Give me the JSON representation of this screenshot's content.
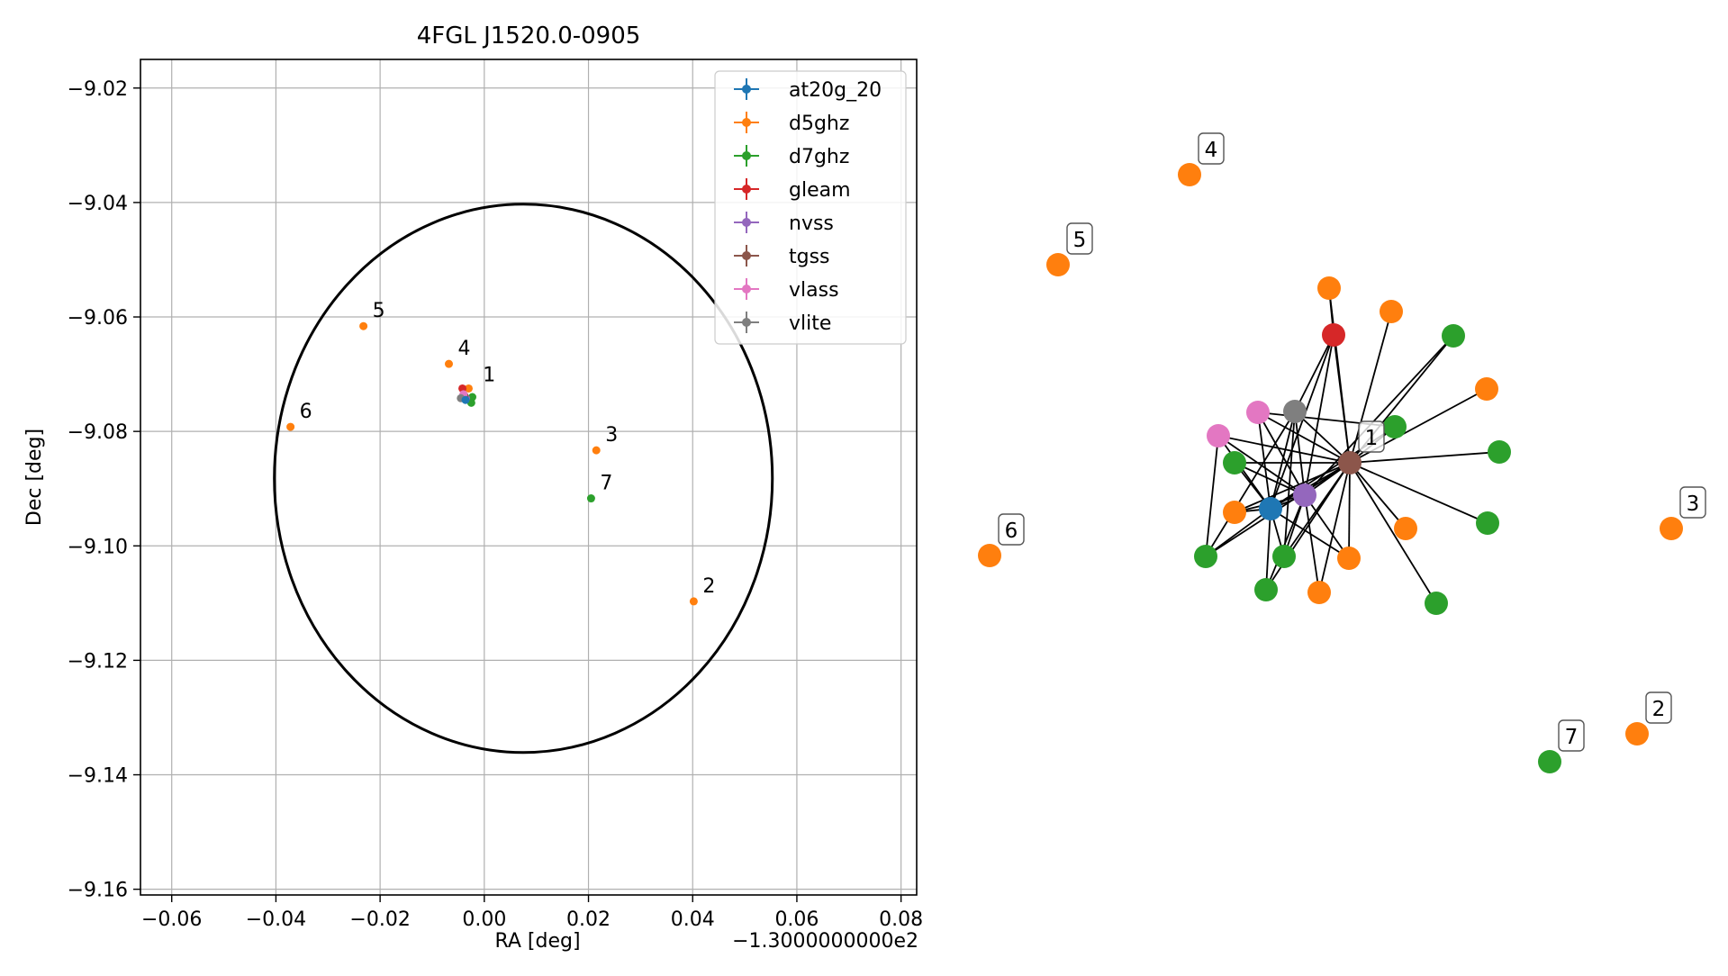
{
  "chart_data": [
    {
      "type": "scatter",
      "title": "4FGL J1520.0-0905",
      "xlabel": "RA [deg]",
      "ylabel": "Dec [deg]",
      "x_offset_label": "−1.3000000000e2",
      "xlim": [
        -0.066,
        0.083
      ],
      "ylim": [
        -9.161,
        -9.015
      ],
      "x_ticks": [
        -0.06,
        -0.04,
        -0.02,
        0.0,
        0.02,
        0.04,
        0.06,
        0.08
      ],
      "x_tick_labels": [
        "−0.06",
        "−0.04",
        "−0.02",
        "0.00",
        "0.02",
        "0.04",
        "0.06",
        "0.08"
      ],
      "y_ticks": [
        -9.02,
        -9.04,
        -9.06,
        -9.08,
        -9.1,
        -9.12,
        -9.14,
        -9.16
      ],
      "y_tick_labels": [
        "−9.02",
        "−9.04",
        "−9.06",
        "−9.08",
        "−9.10",
        "−9.12",
        "−9.14",
        "−9.16"
      ],
      "grid": true,
      "legend_position": "top-right",
      "legend": [
        {
          "name": "at20g_20",
          "color": "#1f77b4"
        },
        {
          "name": "d5ghz",
          "color": "#ff7f0e"
        },
        {
          "name": "d7ghz",
          "color": "#2ca02c"
        },
        {
          "name": "gleam",
          "color": "#d62728"
        },
        {
          "name": "nvss",
          "color": "#9467bd"
        },
        {
          "name": "tgss",
          "color": "#8c564b"
        },
        {
          "name": "vlass",
          "color": "#e377c2"
        },
        {
          "name": "vlite",
          "color": "#7f7f7f"
        }
      ],
      "error_ellipse": {
        "center_x": 0.0075,
        "center_y": -9.0882,
        "semi_axis_x": 0.0478,
        "semi_axis_y": 0.0479
      },
      "series": [
        {
          "name": "d5ghz",
          "color": "#ff7f0e",
          "points": [
            {
              "x": -0.003,
              "y": -9.0725
            },
            {
              "x": 0.0402,
              "y": -9.1097
            },
            {
              "x": 0.0215,
              "y": -9.0833
            },
            {
              "x": -0.0068,
              "y": -9.0682
            },
            {
              "x": -0.0232,
              "y": -9.0616
            },
            {
              "x": -0.0372,
              "y": -9.0792
            }
          ]
        },
        {
          "name": "d7ghz",
          "color": "#2ca02c",
          "points": [
            {
              "x": -0.0025,
              "y": -9.075
            },
            {
              "x": 0.0205,
              "y": -9.0917
            },
            {
              "x": -0.0023,
              "y": -9.074
            }
          ]
        },
        {
          "name": "gleam",
          "color": "#d62728",
          "points": [
            {
              "x": -0.0042,
              "y": -9.0725
            }
          ]
        },
        {
          "name": "nvss",
          "color": "#9467bd",
          "points": [
            {
              "x": -0.0035,
              "y": -9.0742
            }
          ]
        },
        {
          "name": "tgss",
          "color": "#8c564b",
          "points": [
            {
              "x": -0.0038,
              "y": -9.0738
            }
          ]
        },
        {
          "name": "vlass",
          "color": "#e377c2",
          "points": [
            {
              "x": -0.004,
              "y": -9.0735
            }
          ]
        },
        {
          "name": "vlite",
          "color": "#7f7f7f",
          "points": [
            {
              "x": -0.0045,
              "y": -9.0742
            }
          ]
        },
        {
          "name": "at20g_20",
          "color": "#1f77b4",
          "points": [
            {
              "x": -0.0036,
              "y": -9.0745
            }
          ]
        }
      ],
      "annotations": [
        {
          "text": "1",
          "x": -0.002,
          "y": -9.0728
        },
        {
          "text": "2",
          "x": 0.0402,
          "y": -9.1097
        },
        {
          "text": "3",
          "x": 0.0215,
          "y": -9.0833
        },
        {
          "text": "4",
          "x": -0.0068,
          "y": -9.0682
        },
        {
          "text": "5",
          "x": -0.0232,
          "y": -9.0616
        },
        {
          "text": "6",
          "x": -0.0372,
          "y": -9.0792
        },
        {
          "text": "7",
          "x": 0.0205,
          "y": -9.0917
        }
      ]
    },
    {
      "type": "network",
      "colors": {
        "at20g_20": "#1f77b4",
        "d5ghz": "#ff7f0e",
        "d7ghz": "#2ca02c",
        "gleam": "#d62728",
        "nvss": "#9467bd",
        "tgss": "#8c564b",
        "vlass": "#e377c2",
        "vlite": "#7f7f7f"
      },
      "nodes": [
        {
          "id": "tgss",
          "cat": "tgss",
          "label": "1"
        },
        {
          "id": "gleam",
          "cat": "gleam"
        },
        {
          "id": "vlite",
          "cat": "vlite"
        },
        {
          "id": "vlass1",
          "cat": "vlass"
        },
        {
          "id": "vlass2",
          "cat": "vlass"
        },
        {
          "id": "nvss",
          "cat": "nvss"
        },
        {
          "id": "at20g",
          "cat": "at20g_20"
        },
        {
          "id": "o1",
          "cat": "d5ghz"
        },
        {
          "id": "o2",
          "cat": "d5ghz"
        },
        {
          "id": "o3",
          "cat": "d5ghz"
        },
        {
          "id": "o4",
          "cat": "d5ghz"
        },
        {
          "id": "o5",
          "cat": "d5ghz"
        },
        {
          "id": "o6",
          "cat": "d5ghz"
        },
        {
          "id": "o7",
          "cat": "d5ghz"
        },
        {
          "id": "g1",
          "cat": "d7ghz"
        },
        {
          "id": "g2",
          "cat": "d7ghz"
        },
        {
          "id": "g3",
          "cat": "d7ghz"
        },
        {
          "id": "g4",
          "cat": "d7ghz"
        },
        {
          "id": "g5",
          "cat": "d7ghz"
        },
        {
          "id": "g6",
          "cat": "d7ghz"
        },
        {
          "id": "g7",
          "cat": "d7ghz"
        },
        {
          "id": "g8",
          "cat": "d7ghz"
        },
        {
          "id": "g9",
          "cat": "d7ghz"
        },
        {
          "id": "iso4",
          "cat": "d5ghz",
          "label": "4"
        },
        {
          "id": "iso5",
          "cat": "d5ghz",
          "label": "5"
        },
        {
          "id": "iso6",
          "cat": "d5ghz",
          "label": "6"
        },
        {
          "id": "iso3",
          "cat": "d5ghz",
          "label": "3"
        },
        {
          "id": "iso2",
          "cat": "d5ghz",
          "label": "2"
        },
        {
          "id": "iso7",
          "cat": "d7ghz",
          "label": "7"
        }
      ],
      "edges": [
        [
          "tgss",
          "gleam"
        ],
        [
          "tgss",
          "vlite"
        ],
        [
          "tgss",
          "vlass1"
        ],
        [
          "tgss",
          "vlass2"
        ],
        [
          "tgss",
          "nvss"
        ],
        [
          "tgss",
          "at20g"
        ],
        [
          "tgss",
          "o1"
        ],
        [
          "tgss",
          "o2"
        ],
        [
          "tgss",
          "o3"
        ],
        [
          "tgss",
          "o4"
        ],
        [
          "tgss",
          "o5"
        ],
        [
          "tgss",
          "o6"
        ],
        [
          "tgss",
          "o7"
        ],
        [
          "tgss",
          "g1"
        ],
        [
          "tgss",
          "g2"
        ],
        [
          "tgss",
          "g3"
        ],
        [
          "tgss",
          "g4"
        ],
        [
          "tgss",
          "g5"
        ],
        [
          "tgss",
          "g6"
        ],
        [
          "tgss",
          "g7"
        ],
        [
          "tgss",
          "g8"
        ],
        [
          "tgss",
          "g9"
        ],
        [
          "gleam",
          "o1"
        ],
        [
          "gleam",
          "nvss"
        ],
        [
          "gleam",
          "at20g"
        ],
        [
          "gleam",
          "vlite"
        ],
        [
          "vlite",
          "nvss"
        ],
        [
          "vlite",
          "at20g"
        ],
        [
          "vlite",
          "g8"
        ],
        [
          "vlite",
          "g7"
        ],
        [
          "vlass1",
          "nvss"
        ],
        [
          "vlass1",
          "at20g"
        ],
        [
          "vlass1",
          "g2"
        ],
        [
          "vlass2",
          "nvss"
        ],
        [
          "vlass2",
          "at20g"
        ],
        [
          "vlass2",
          "g8"
        ],
        [
          "nvss",
          "at20g"
        ],
        [
          "nvss",
          "o5"
        ],
        [
          "nvss",
          "o6"
        ],
        [
          "nvss",
          "g7"
        ],
        [
          "nvss",
          "g1"
        ],
        [
          "nvss",
          "g9"
        ],
        [
          "nvss",
          "o7"
        ],
        [
          "nvss",
          "g6"
        ],
        [
          "at20g",
          "o5"
        ],
        [
          "at20g",
          "o6"
        ],
        [
          "at20g",
          "g7"
        ],
        [
          "at20g",
          "g8"
        ],
        [
          "at20g",
          "g6"
        ],
        [
          "at20g",
          "g9"
        ],
        [
          "at20g",
          "g2"
        ]
      ]
    }
  ]
}
